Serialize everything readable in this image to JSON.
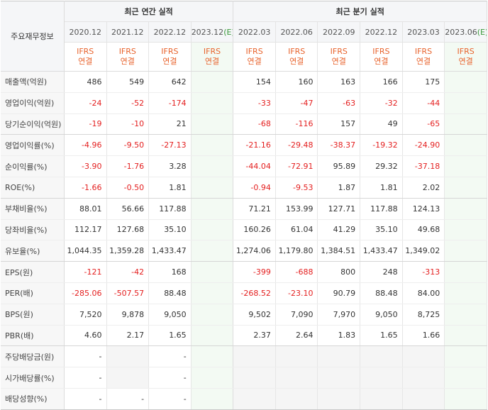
{
  "header": {
    "label": "주요재무정보",
    "annual_title": "최근 연간 실적",
    "quarterly_title": "최근 분기 실적",
    "ifrs_top": "IFRS",
    "ifrs_bottom": "연결",
    "estimate_mark": "(E)"
  },
  "periods": [
    {
      "label": "2020.12",
      "est": false
    },
    {
      "label": "2021.12",
      "est": false
    },
    {
      "label": "2022.12",
      "est": false
    },
    {
      "label": "2023.12",
      "est": true
    },
    {
      "label": "2022.03",
      "est": false
    },
    {
      "label": "2022.06",
      "est": false
    },
    {
      "label": "2022.09",
      "est": false
    },
    {
      "label": "2022.12",
      "est": false
    },
    {
      "label": "2023.03",
      "est": false
    },
    {
      "label": "2023.06",
      "est": true
    }
  ],
  "rows": [
    {
      "label": "매출액(억원)",
      "values": [
        "486",
        "549",
        "642",
        "",
        "154",
        "160",
        "163",
        "166",
        "175",
        ""
      ]
    },
    {
      "label": "영업이익(억원)",
      "values": [
        "-24",
        "-52",
        "-174",
        "",
        "-33",
        "-47",
        "-63",
        "-32",
        "-44",
        ""
      ]
    },
    {
      "label": "당기순이익(억원)",
      "values": [
        "-19",
        "-10",
        "21",
        "",
        "-68",
        "-116",
        "157",
        "49",
        "-65",
        ""
      ]
    },
    {
      "label": "영업이익률(%)",
      "values": [
        "-4.96",
        "-9.50",
        "-27.13",
        "",
        "-21.16",
        "-29.48",
        "-38.37",
        "-19.32",
        "-24.90",
        ""
      ]
    },
    {
      "label": "순이익률(%)",
      "values": [
        "-3.90",
        "-1.76",
        "3.28",
        "",
        "-44.04",
        "-72.91",
        "95.89",
        "29.32",
        "-37.18",
        ""
      ]
    },
    {
      "label": "ROE(%)",
      "values": [
        "-1.66",
        "-0.50",
        "1.81",
        "",
        "-0.94",
        "-9.53",
        "1.87",
        "1.81",
        "2.02",
        ""
      ]
    },
    {
      "label": "부채비율(%)",
      "values": [
        "88.01",
        "56.66",
        "117.88",
        "",
        "71.21",
        "153.99",
        "127.71",
        "117.88",
        "124.13",
        ""
      ]
    },
    {
      "label": "당좌비율(%)",
      "values": [
        "112.17",
        "127.68",
        "35.10",
        "",
        "160.26",
        "61.04",
        "41.29",
        "35.10",
        "49.68",
        ""
      ]
    },
    {
      "label": "유보율(%)",
      "values": [
        "1,044.35",
        "1,359.28",
        "1,433.47",
        "",
        "1,274.06",
        "1,179.80",
        "1,384.51",
        "1,433.47",
        "1,349.02",
        ""
      ]
    },
    {
      "label": "EPS(원)",
      "values": [
        "-121",
        "-42",
        "168",
        "",
        "-399",
        "-688",
        "800",
        "248",
        "-313",
        ""
      ]
    },
    {
      "label": "PER(배)",
      "values": [
        "-285.06",
        "-507.57",
        "88.48",
        "",
        "-268.52",
        "-23.10",
        "90.79",
        "88.48",
        "84.00",
        ""
      ]
    },
    {
      "label": "BPS(원)",
      "values": [
        "7,520",
        "9,878",
        "9,050",
        "",
        "9,502",
        "7,090",
        "7,970",
        "9,050",
        "8,725",
        ""
      ]
    },
    {
      "label": "PBR(배)",
      "values": [
        "4.60",
        "2.17",
        "1.65",
        "",
        "2.37",
        "2.64",
        "1.83",
        "1.65",
        "1.66",
        ""
      ]
    },
    {
      "label": "주당배당금(원)",
      "values": [
        "-",
        "",
        "-",
        "",
        "",
        "",
        "",
        "",
        "",
        ""
      ]
    },
    {
      "label": "시가배당률(%)",
      "values": [
        "-",
        "",
        "-",
        "",
        "",
        "",
        "",
        "",
        "",
        ""
      ]
    },
    {
      "label": "배당성향(%)",
      "values": [
        "-",
        "-",
        "-",
        "",
        "",
        "",
        "",
        "",
        "",
        ""
      ]
    }
  ],
  "colors": {
    "negative": "#e41f1f",
    "ifrs": "#e8632c",
    "estimate_mark": "#3a9a3a",
    "estimate_bg": "#f3faf3",
    "header_bg": "#f5f6f8"
  }
}
